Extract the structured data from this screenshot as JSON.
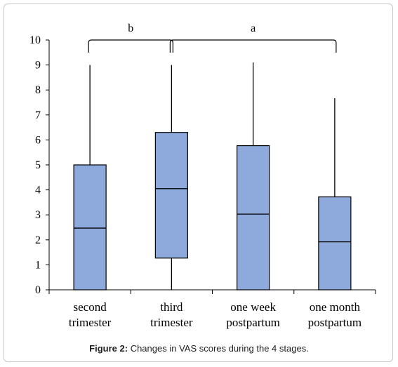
{
  "caption": {
    "label": "Figure 2:",
    "text": "Changes in VAS scores during the 4 stages."
  },
  "chart_data": {
    "type": "boxplot",
    "title": "",
    "xlabel": "",
    "ylabel": "",
    "ylim": [
      0,
      10
    ],
    "yticks": [
      "0",
      "1",
      "2",
      "3",
      "4",
      "5",
      "6",
      "7",
      "8",
      "9",
      "10"
    ],
    "grid": false,
    "box_color": "#8eaadc",
    "categories": [
      [
        "second",
        "trimester"
      ],
      [
        "third",
        "trimester"
      ],
      [
        "one week",
        "postpartum"
      ],
      [
        "one month",
        "postpartum"
      ]
    ],
    "boxes": [
      {
        "min": 0,
        "q1": 0,
        "median": 2.47,
        "q3": 5.0,
        "max": 9.0
      },
      {
        "min": 0,
        "q1": 1.27,
        "median": 4.05,
        "q3": 6.3,
        "max": 9.0
      },
      {
        "min": 0,
        "q1": 0,
        "median": 3.03,
        "q3": 5.77,
        "max": 9.1
      },
      {
        "min": 0,
        "q1": 0,
        "median": 1.92,
        "q3": 3.72,
        "max": 7.67
      }
    ],
    "annotations": [
      {
        "label": "b",
        "from": 0,
        "to": 1
      },
      {
        "label": "a",
        "from": 1,
        "to": 3
      }
    ]
  }
}
